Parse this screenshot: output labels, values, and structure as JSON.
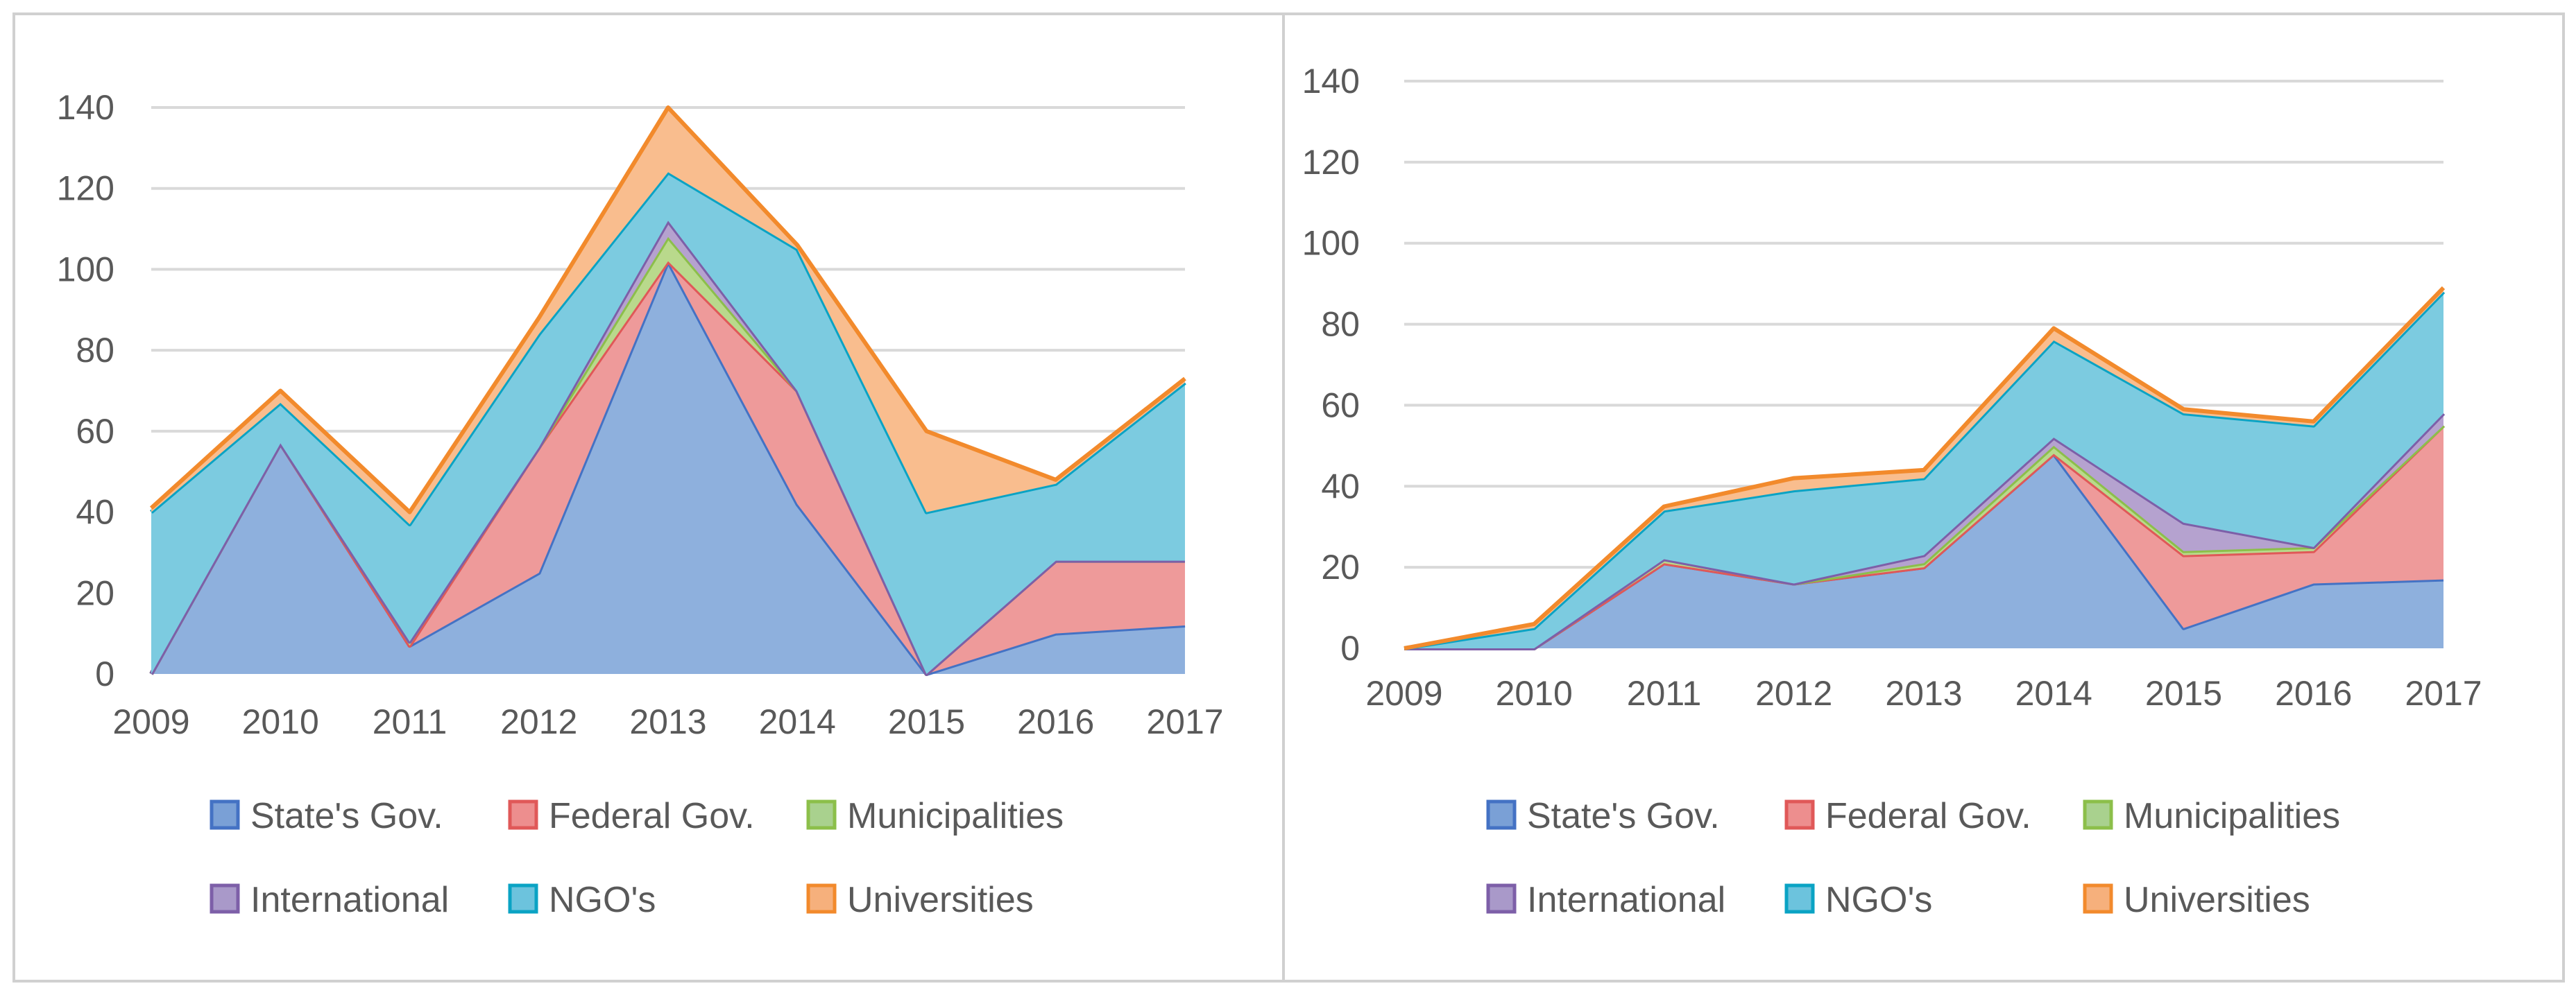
{
  "chart_data": [
    {
      "type": "area",
      "stacked": true,
      "title": "",
      "xlabel": "",
      "ylabel": "",
      "categories": [
        "2009",
        "2010",
        "2011",
        "2012",
        "2013",
        "2014",
        "2015",
        "2016",
        "2017"
      ],
      "ylim": [
        0,
        140
      ],
      "yticks": [
        "0",
        "20",
        "40",
        "60",
        "80",
        "100",
        "120",
        "140"
      ],
      "grid": true,
      "legend_position": "bottom",
      "series": [
        {
          "name": "State's Gov.",
          "values": [
            0,
            57,
            7,
            25,
            102,
            42,
            0,
            10,
            12
          ]
        },
        {
          "name": "Federal Gov.",
          "values": [
            0,
            0,
            0,
            31,
            0,
            28,
            0,
            18,
            16
          ]
        },
        {
          "name": "Municipalities",
          "values": [
            0,
            0,
            1,
            0,
            6,
            0,
            0,
            0,
            0
          ]
        },
        {
          "name": "International",
          "values": [
            0,
            0,
            0,
            0,
            4,
            0,
            0,
            0,
            0
          ]
        },
        {
          "name": "NGO's",
          "values": [
            40,
            10,
            29,
            28,
            12,
            35,
            40,
            19,
            44
          ]
        },
        {
          "name": "Universities",
          "values": [
            1,
            3,
            3,
            4,
            16,
            1,
            20,
            1,
            1
          ]
        }
      ]
    },
    {
      "type": "area",
      "stacked": true,
      "title": "",
      "xlabel": "",
      "ylabel": "",
      "categories": [
        "2009",
        "2010",
        "2011",
        "2012",
        "2013",
        "2014",
        "2015",
        "2016",
        "2017"
      ],
      "ylim": [
        0,
        140
      ],
      "yticks": [
        "0",
        "20",
        "40",
        "60",
        "80",
        "100",
        "120",
        "140"
      ],
      "grid": true,
      "legend_position": "bottom",
      "series": [
        {
          "name": "State's Gov.",
          "values": [
            0,
            0,
            21,
            16,
            20,
            48,
            5,
            16,
            17
          ]
        },
        {
          "name": "Federal Gov.",
          "values": [
            0,
            0,
            0,
            0,
            0,
            0,
            18,
            8,
            38
          ]
        },
        {
          "name": "Municipalities",
          "values": [
            0,
            0,
            1,
            0,
            1,
            2,
            1,
            1,
            0
          ]
        },
        {
          "name": "International",
          "values": [
            0,
            0,
            0,
            0,
            2,
            2,
            7,
            0,
            3
          ]
        },
        {
          "name": "NGO's",
          "values": [
            0,
            5,
            12,
            23,
            19,
            24,
            27,
            30,
            30
          ]
        },
        {
          "name": "Universities",
          "values": [
            0,
            1,
            1,
            3,
            2,
            3,
            1,
            1,
            1
          ]
        }
      ]
    }
  ],
  "colors": {
    "State's Gov.": {
      "fill": "#8eb0dd",
      "line": "#4472c4",
      "swatch": "#7aa0d6"
    },
    "Federal Gov.": {
      "fill": "#ee9a9a",
      "line": "#e05858",
      "swatch": "#ed8e8e"
    },
    "Municipalities": {
      "fill": "#b9d98c",
      "line": "#8cbf4a",
      "swatch": "#a9d18e"
    },
    "International": {
      "fill": "#b5a2cf",
      "line": "#7d5fa8",
      "swatch": "#a999c9"
    },
    "NGO's": {
      "fill": "#7ccbe0",
      "line": "#0aa3c4",
      "swatch": "#6cc3dd"
    },
    "Universities": {
      "fill": "#f9bd8e",
      "line": "#f28a2c",
      "swatch": "#f6b07c"
    }
  }
}
